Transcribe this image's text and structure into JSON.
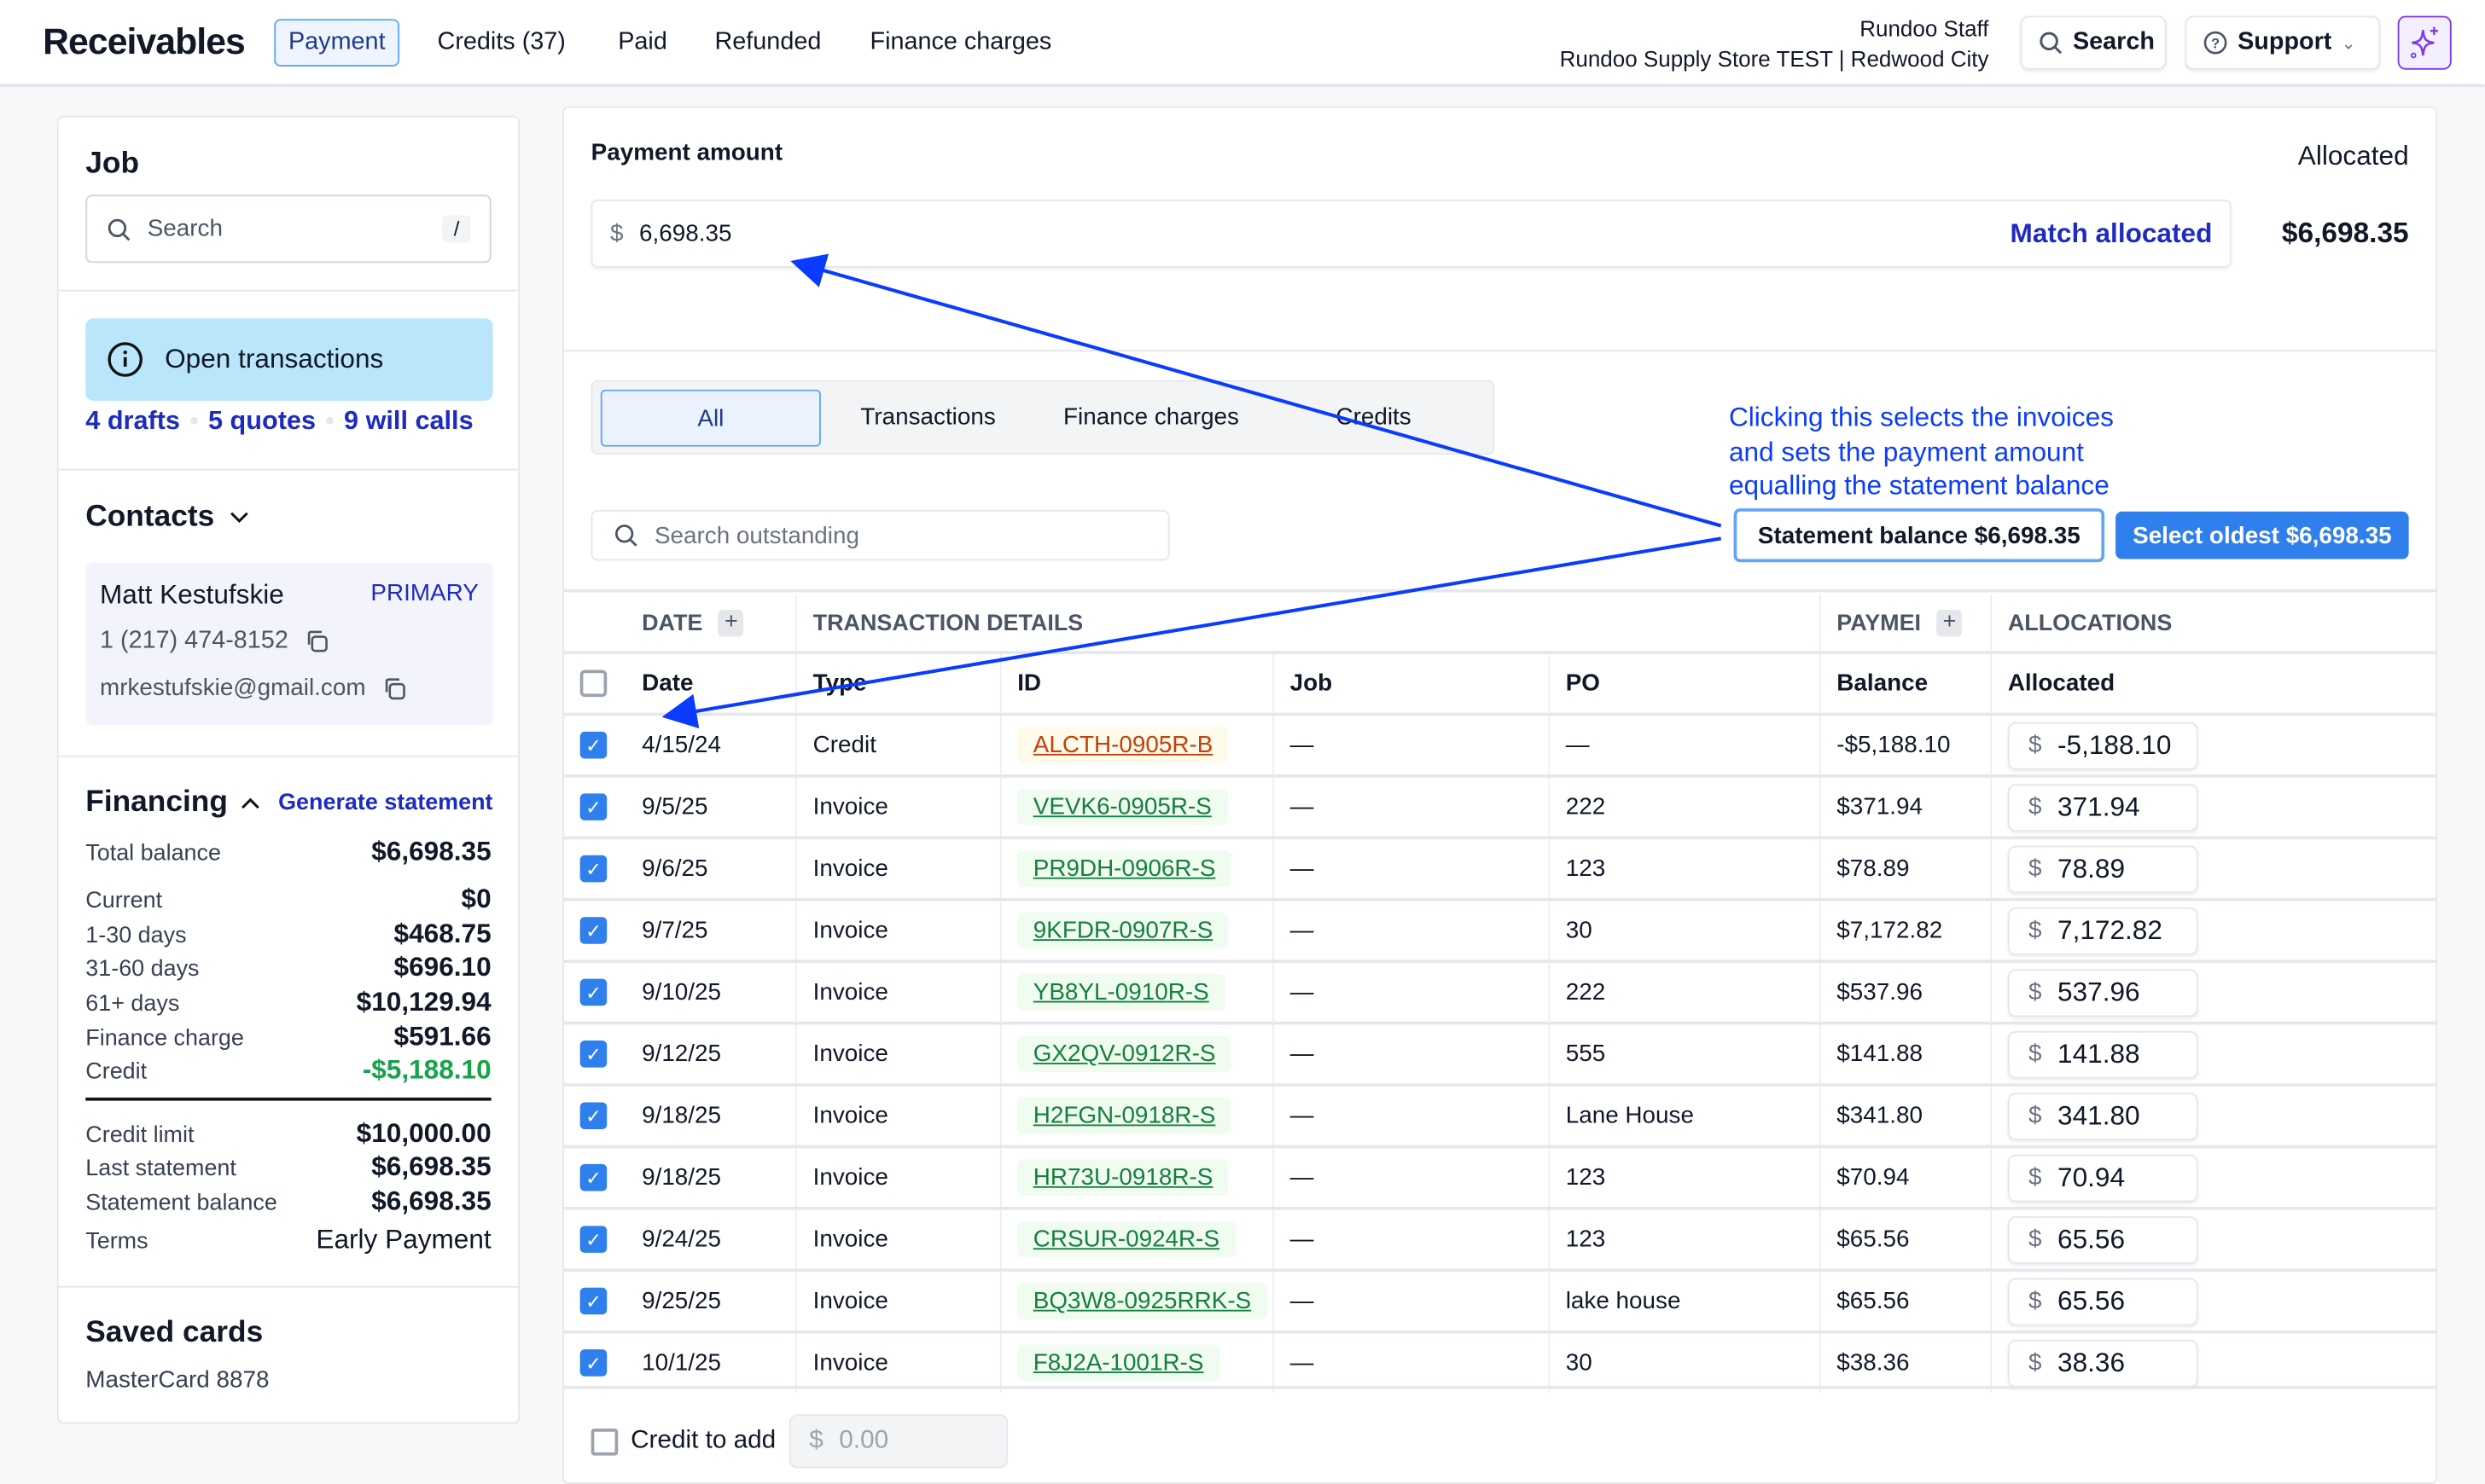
{
  "header": {
    "title": "Receivables",
    "tabs": [
      {
        "label": "Payment",
        "active": true
      },
      {
        "label": "Credits (37)"
      },
      {
        "label": "Paid"
      },
      {
        "label": "Refunded"
      },
      {
        "label": "Finance charges"
      }
    ],
    "user": "Rundoo Staff",
    "store": "Rundoo Supply Store TEST | Redwood City",
    "search_label": "Search",
    "support_label": "Support"
  },
  "sidebar": {
    "job": {
      "title": "Job",
      "search_placeholder": "Search",
      "shortcut": "/"
    },
    "open_transactions": {
      "label": "Open transactions",
      "links": [
        "4 drafts",
        "5 quotes",
        "9 will calls"
      ]
    },
    "contacts": {
      "title": "Contacts",
      "name": "Matt Kestufskie",
      "badge": "PRIMARY",
      "phone": "1 (217) 474-8152",
      "email": "mrkestufskie@gmail.com"
    },
    "financing": {
      "title": "Financing",
      "action": "Generate statement",
      "total": {
        "label": "Total balance",
        "value": "$6,698.35"
      },
      "aging": [
        {
          "label": "Current",
          "value": "$0"
        },
        {
          "label": "1-30 days",
          "value": "$468.75"
        },
        {
          "label": "31-60 days",
          "value": "$696.10"
        },
        {
          "label": "61+ days",
          "value": "$10,129.94"
        },
        {
          "label": "Finance charge",
          "value": "$591.66"
        },
        {
          "label": "Credit",
          "value": "-$5,188.10"
        }
      ],
      "limits": [
        {
          "label": "Credit limit",
          "value": "$10,000.00"
        },
        {
          "label": "Last statement",
          "value": "$6,698.35"
        },
        {
          "label": "Statement balance",
          "value": "$6,698.35"
        },
        {
          "label": "Terms",
          "value": "Early Payment"
        }
      ]
    },
    "saved_cards": {
      "title": "Saved cards",
      "card": "MasterCard 8878"
    }
  },
  "main": {
    "payment_label": "Payment amount",
    "currency": "$",
    "amount": "6,698.35",
    "match_label": "Match allocated",
    "allocated_label": "Allocated",
    "allocated_value": "$6,698.35",
    "filters": [
      {
        "label": "All",
        "active": true
      },
      {
        "label": "Transactions"
      },
      {
        "label": "Finance charges"
      },
      {
        "label": "Credits"
      }
    ],
    "search_placeholder": "Search outstanding",
    "statement_button": "Statement balance $6,698.35",
    "oldest_button": "Select oldest $6,698.35",
    "annotation": [
      "Clicking this selects the invoices",
      "and sets the payment amount",
      "equalling the statement balance"
    ],
    "groups": [
      "DATE",
      "TRANSACTION DETAILS",
      "PAYMEI",
      "ALLOCATIONS"
    ],
    "columns": [
      "Date",
      "Type",
      "ID",
      "Job",
      "PO",
      "Balance",
      "Allocated"
    ],
    "rows": [
      {
        "date": "4/15/24",
        "type": "Credit",
        "id": "ALCTH-0905R-B",
        "job": "—",
        "po": "—",
        "balance": "-$5,188.10",
        "allocated": "-5,188.10",
        "credit": true
      },
      {
        "date": "9/5/25",
        "type": "Invoice",
        "id": "VEVK6-0905R-S",
        "job": "—",
        "po": "222",
        "balance": "$371.94",
        "allocated": "371.94"
      },
      {
        "date": "9/6/25",
        "type": "Invoice",
        "id": "PR9DH-0906R-S",
        "job": "—",
        "po": "123",
        "balance": "$78.89",
        "allocated": "78.89"
      },
      {
        "date": "9/7/25",
        "type": "Invoice",
        "id": "9KFDR-0907R-S",
        "job": "—",
        "po": "30",
        "balance": "$7,172.82",
        "allocated": "7,172.82"
      },
      {
        "date": "9/10/25",
        "type": "Invoice",
        "id": "YB8YL-0910R-S",
        "job": "—",
        "po": "222",
        "balance": "$537.96",
        "allocated": "537.96"
      },
      {
        "date": "9/12/25",
        "type": "Invoice",
        "id": "GX2QV-0912R-S",
        "job": "—",
        "po": "555",
        "balance": "$141.88",
        "allocated": "141.88"
      },
      {
        "date": "9/18/25",
        "type": "Invoice",
        "id": "H2FGN-0918R-S",
        "job": "—",
        "po": "Lane House",
        "balance": "$341.80",
        "allocated": "341.80"
      },
      {
        "date": "9/18/25",
        "type": "Invoice",
        "id": "HR73U-0918R-S",
        "job": "—",
        "po": "123",
        "balance": "$70.94",
        "allocated": "70.94"
      },
      {
        "date": "9/24/25",
        "type": "Invoice",
        "id": "CRSUR-0924R-S",
        "job": "—",
        "po": "123",
        "balance": "$65.56",
        "allocated": "65.56"
      },
      {
        "date": "9/25/25",
        "type": "Invoice",
        "id": "BQ3W8-0925RRK-S",
        "job": "—",
        "po": "lake house",
        "balance": "$65.56",
        "allocated": "65.56"
      },
      {
        "date": "10/1/25",
        "type": "Invoice",
        "id": "F8J2A-1001R-S",
        "job": "—",
        "po": "30",
        "balance": "$38.36",
        "allocated": "38.36"
      }
    ],
    "credit_to_add_label": "Credit to add",
    "credit_to_add_placeholder": "0.00"
  },
  "colors": {
    "accent": "#2f80ed",
    "link": "#1e2bbf",
    "annotation": "#0a3cff",
    "info_bg": "#b9e6fb",
    "credit_green": "#16a34a"
  }
}
